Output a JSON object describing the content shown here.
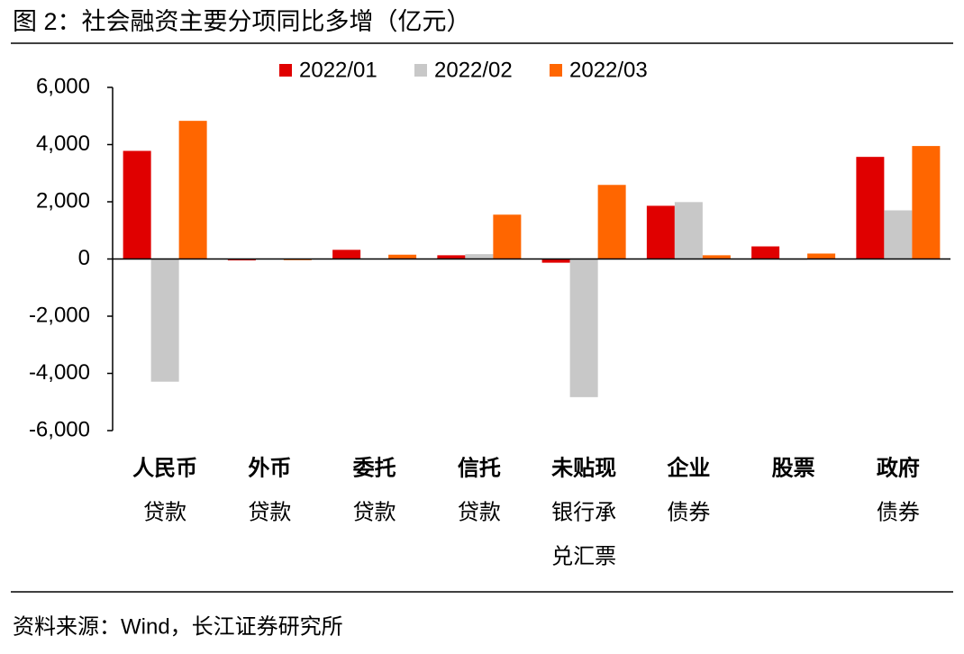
{
  "chart_data": {
    "type": "bar",
    "title": "图 2：社会融资主要分项同比多增（亿元）",
    "source": "资料来源：Wind，长江证券研究所",
    "categories": [
      [
        "人民币",
        "贷款"
      ],
      [
        "外币",
        "贷款"
      ],
      [
        "委托",
        "贷款"
      ],
      [
        "信托",
        "贷款"
      ],
      [
        "未贴现",
        "银行承",
        "兑汇票"
      ],
      [
        "企业",
        "债券"
      ],
      [
        "股票"
      ],
      [
        "政府",
        "债券"
      ]
    ],
    "series": [
      {
        "name": "2022/01",
        "color": "#e00000",
        "values": [
          3780,
          -50,
          320,
          130,
          -130,
          1860,
          440,
          3570
        ]
      },
      {
        "name": "2022/02",
        "color": "#c8c8c8",
        "values": [
          -4290,
          0,
          0,
          170,
          -4830,
          1990,
          -30,
          1700
        ]
      },
      {
        "name": "2022/03",
        "color": "#ff6600",
        "values": [
          4830,
          -40,
          150,
          1550,
          2590,
          130,
          190,
          3950
        ]
      }
    ],
    "ylim": [
      -6000,
      6000
    ],
    "yticks": [
      {
        "value": -6000,
        "label": "-6,000"
      },
      {
        "value": -4000,
        "label": "-4,000"
      },
      {
        "value": -2000,
        "label": "-2,000"
      },
      0,
      {
        "value": 2000,
        "label": "2,000"
      },
      {
        "value": 4000,
        "label": "4,000"
      },
      {
        "value": 6000,
        "label": "6,000"
      }
    ],
    "legend": "top"
  }
}
